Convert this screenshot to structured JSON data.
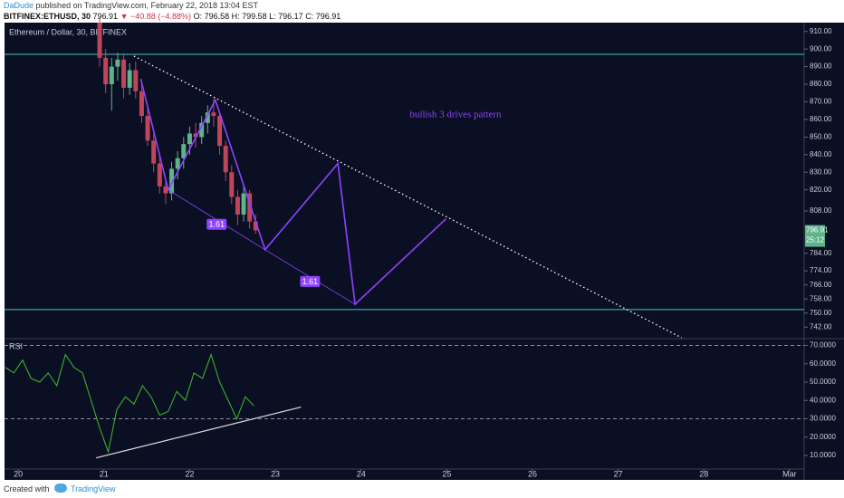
{
  "header": {
    "author": "DaDude",
    "published": "published on TradingView.com, February 22, 2018 13:04 EST",
    "symbol": "BITFINEX:ETHUSD, 30",
    "last": "796.91",
    "change": "▼ −40.88 (−4.88%)",
    "open": "O: 796.58",
    "high": "H: 799.58",
    "low": "L: 796.17",
    "close": "C: 796.91"
  },
  "footer": {
    "created": "Created with",
    "brand": "TradingView"
  },
  "chart_data": [
    {
      "type": "candlestick",
      "title": "Ethereum / Dollar, 30, BITFINEX",
      "up_color": "#5fb38a",
      "down_color": "#c0455a",
      "x": [
        20.95,
        21.02,
        21.09,
        21.16,
        21.23,
        21.3,
        21.37,
        21.44,
        21.51,
        21.58,
        21.65,
        21.72,
        21.79,
        21.86,
        21.93,
        22.0,
        22.07,
        22.14,
        22.21,
        22.28,
        22.35,
        22.42,
        22.49,
        22.56,
        22.63,
        22.7,
        22.77
      ],
      "open": [
        915,
        895,
        880,
        890,
        894,
        878,
        888,
        876,
        862,
        848,
        835,
        822,
        818,
        832,
        838,
        846,
        852,
        850,
        858,
        864,
        862,
        845,
        830,
        816,
        806,
        818,
        802
      ],
      "high": [
        918,
        900,
        895,
        898,
        897,
        892,
        893,
        880,
        866,
        852,
        840,
        826,
        836,
        842,
        850,
        856,
        858,
        862,
        868,
        872,
        864,
        848,
        834,
        820,
        822,
        820,
        806
      ],
      "low": [
        890,
        875,
        865,
        882,
        872,
        874,
        872,
        858,
        845,
        830,
        818,
        812,
        814,
        826,
        832,
        840,
        844,
        846,
        852,
        856,
        840,
        825,
        812,
        800,
        802,
        798,
        795
      ],
      "close": [
        895,
        880,
        890,
        894,
        878,
        888,
        876,
        862,
        848,
        835,
        822,
        818,
        832,
        838,
        846,
        852,
        850,
        858,
        864,
        862,
        845,
        830,
        816,
        806,
        818,
        802,
        797
      ],
      "xlim": [
        19.84,
        29.17
      ],
      "xticks": [
        20,
        21,
        22,
        23,
        24,
        25,
        26,
        27,
        28,
        {
          "value": 29,
          "label": "Mar"
        }
      ],
      "ylim": [
        736,
        915
      ],
      "yticks": [
        {
          "value": 910,
          "label": "910.00"
        },
        {
          "value": 900,
          "label": "900.00"
        },
        {
          "value": 890,
          "label": "890.00"
        },
        {
          "value": 880,
          "label": "880.00"
        },
        {
          "value": 870,
          "label": "870.00"
        },
        {
          "value": 860,
          "label": "860.00"
        },
        {
          "value": 850,
          "label": "850.00"
        },
        {
          "value": 840,
          "label": "840.00"
        },
        {
          "value": 830,
          "label": "830.00"
        },
        {
          "value": 820,
          "label": "820.00"
        },
        {
          "value": 808,
          "label": "808.00"
        },
        {
          "value": 784,
          "label": "784.00"
        },
        {
          "value": 774,
          "label": "774.00"
        },
        {
          "value": 766,
          "label": "766.00"
        },
        {
          "value": 758,
          "label": "758.00"
        },
        {
          "value": 750,
          "label": "750.00"
        },
        {
          "value": 742,
          "label": "742.00"
        }
      ],
      "last_price": {
        "value": 796.91,
        "label": "796.91",
        "timer": "25:12",
        "color": "#5fb38a"
      },
      "levels": [
        897,
        752
      ],
      "level_color": "#4fc3c3",
      "pattern": {
        "color": "#8e44ff",
        "x": [
          21.43,
          21.75,
          22.3,
          22.88,
          23.73,
          23.93,
          24.99
        ],
        "y": [
          883,
          820,
          871,
          786,
          835,
          755,
          803.5
        ]
      },
      "extensions": [
        {
          "x": [
            21.75,
            22.88
          ],
          "label": "1.61"
        },
        {
          "x": [
            22.88,
            23.93
          ],
          "label": "1.61"
        }
      ],
      "trendline": {
        "x": [
          21.35,
          27.74
        ],
        "y": [
          896,
          736
        ]
      },
      "annotation": "bullish 3 drives pattern"
    },
    {
      "type": "line",
      "title": "RSI",
      "color": "#3fbf2a",
      "x": [
        19.85,
        19.95,
        20.05,
        20.15,
        20.25,
        20.35,
        20.45,
        20.55,
        20.65,
        20.75,
        20.85,
        20.95,
        21.05,
        21.15,
        21.25,
        21.35,
        21.45,
        21.55,
        21.65,
        21.75,
        21.85,
        21.95,
        22.05,
        22.15,
        22.25,
        22.35,
        22.45,
        22.55,
        22.65,
        22.75
      ],
      "values": [
        58,
        55,
        62,
        52,
        50,
        55,
        48,
        65,
        58,
        55,
        40,
        25,
        12,
        35,
        42,
        38,
        48,
        42,
        32,
        34,
        45,
        40,
        55,
        52,
        65,
        50,
        40,
        30,
        42,
        37
      ],
      "xlim": [
        19.84,
        29.17
      ],
      "ylim": [
        3.1,
        73.2
      ],
      "yticks": [
        {
          "value": 70,
          "label": "70.0000"
        },
        {
          "value": 60,
          "label": "60.0000"
        },
        {
          "value": 50,
          "label": "50.0000"
        },
        {
          "value": 40,
          "label": "40.0000"
        },
        {
          "value": 30,
          "label": "30.0000"
        },
        {
          "value": 20,
          "label": "20.0000"
        },
        {
          "value": 10,
          "label": "10.0000"
        }
      ],
      "bands": [
        70,
        30
      ],
      "trendline": {
        "x": [
          20.91,
          23.3
        ],
        "y": [
          8.7,
          36.4
        ]
      }
    }
  ]
}
